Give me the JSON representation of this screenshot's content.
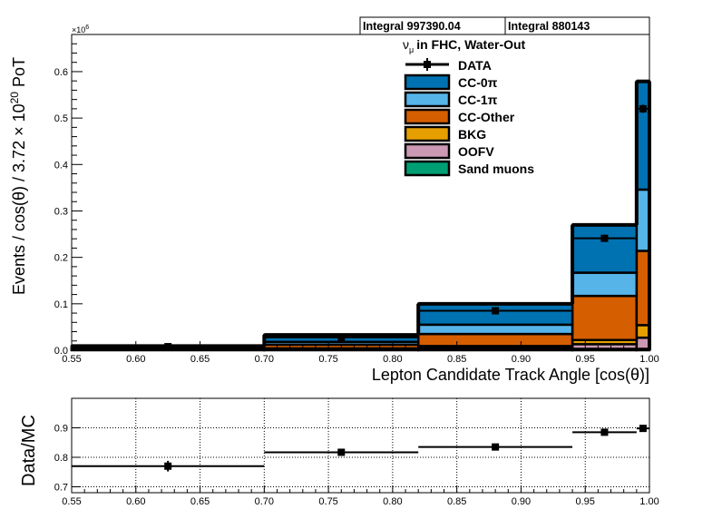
{
  "stats_boxes": [
    "Integral 997390.04",
    "Integral 880143"
  ],
  "exponent_label": "×10",
  "exponent_power": "6",
  "legend": {
    "title": "in FHC, Water-Out",
    "title_symbol": "ν",
    "title_subscript": "μ"
  },
  "chart_data": [
    {
      "type": "bar",
      "subtype": "stacked-histogram",
      "bin_edges": [
        0.55,
        0.7,
        0.82,
        0.94,
        0.99,
        1.0
      ],
      "xlim": [
        0.55,
        1.0
      ],
      "ylim": [
        0,
        0.68
      ],
      "y_scale_exponent": 6,
      "xlabel": "Lepton Candidate Track Angle [cos(θ)]",
      "ylabel_parts": {
        "main": "Events / cos(θ) / 3.72 × 10",
        "power": "20",
        "tail": " PoT"
      },
      "xticks": [
        {
          "v": 0.55,
          "l": "0.55"
        },
        {
          "v": 0.6,
          "l": "0.60"
        },
        {
          "v": 0.65,
          "l": "0.65"
        },
        {
          "v": 0.7,
          "l": "0.70"
        },
        {
          "v": 0.75,
          "l": "0.75"
        },
        {
          "v": 0.8,
          "l": "0.80"
        },
        {
          "v": 0.85,
          "l": "0.85"
        },
        {
          "v": 0.9,
          "l": "0.90"
        },
        {
          "v": 0.95,
          "l": "0.95"
        },
        {
          "v": 1.0,
          "l": "1.00"
        }
      ],
      "yticks": [
        {
          "v": 0.0,
          "l": "0.0"
        },
        {
          "v": 0.1,
          "l": "0.1"
        },
        {
          "v": 0.2,
          "l": "0.2"
        },
        {
          "v": 0.3,
          "l": "0.3"
        },
        {
          "v": 0.4,
          "l": "0.4"
        },
        {
          "v": 0.5,
          "l": "0.5"
        },
        {
          "v": 0.6,
          "l": "0.6"
        }
      ],
      "series": [
        {
          "name": "Sand muons",
          "color": "#009E73",
          "values": [
            0.0005,
            0.001,
            0.002,
            0.003,
            0.003
          ]
        },
        {
          "name": "OOFV",
          "color": "#CC99B4",
          "values": [
            0.001,
            0.002,
            0.004,
            0.01,
            0.024
          ]
        },
        {
          "name": "BKG",
          "color": "#E69F00",
          "values": [
            0.0005,
            0.001,
            0.003,
            0.009,
            0.027
          ]
        },
        {
          "name": "CC-Other",
          "color": "#D55E00",
          "values": [
            0.002,
            0.008,
            0.026,
            0.095,
            0.16
          ]
        },
        {
          "name": "CC-1π",
          "color": "#56B4E9",
          "values": [
            0.002,
            0.006,
            0.02,
            0.05,
            0.132
          ]
        },
        {
          "name": "CC-0π",
          "color": "#0072B2",
          "values": [
            0.003,
            0.015,
            0.045,
            0.103,
            0.233
          ]
        }
      ],
      "data": {
        "name": "DATA",
        "x": [
          0.625,
          0.76,
          0.88,
          0.965,
          0.995
        ],
        "y": [
          0.0077,
          0.0275,
          0.085,
          0.241,
          0.52
        ],
        "yerr": [
          0.0003,
          0.0008,
          0.0012,
          0.0015,
          0.003
        ]
      }
    },
    {
      "type": "scatter",
      "subtype": "ratio",
      "ylabel": "Data/MC",
      "xlim": [
        0.55,
        1.0
      ],
      "ylim": [
        0.68,
        1.0
      ],
      "grid": true,
      "xticks": [
        {
          "v": 0.55,
          "l": "0.55"
        },
        {
          "v": 0.6,
          "l": "0.60"
        },
        {
          "v": 0.65,
          "l": "0.65"
        },
        {
          "v": 0.7,
          "l": "0.70"
        },
        {
          "v": 0.75,
          "l": "0.75"
        },
        {
          "v": 0.8,
          "l": "0.80"
        },
        {
          "v": 0.85,
          "l": "0.85"
        },
        {
          "v": 0.9,
          "l": "0.90"
        },
        {
          "v": 0.95,
          "l": "0.95"
        },
        {
          "v": 1.0,
          "l": "1.00"
        }
      ],
      "yticks": [
        {
          "v": 0.7,
          "l": "0.7"
        },
        {
          "v": 0.8,
          "l": "0.8"
        },
        {
          "v": 0.9,
          "l": "0.9"
        }
      ],
      "x": [
        0.625,
        0.76,
        0.88,
        0.965,
        0.995
      ],
      "xerr_bins": [
        [
          0.55,
          0.7
        ],
        [
          0.7,
          0.82
        ],
        [
          0.82,
          0.94
        ],
        [
          0.94,
          0.99
        ],
        [
          0.99,
          1.0
        ]
      ],
      "y": [
        0.77,
        0.817,
        0.835,
        0.885,
        0.898
      ],
      "yerr": [
        0.018,
        0.012,
        0.006,
        0.006,
        0.005
      ]
    }
  ]
}
